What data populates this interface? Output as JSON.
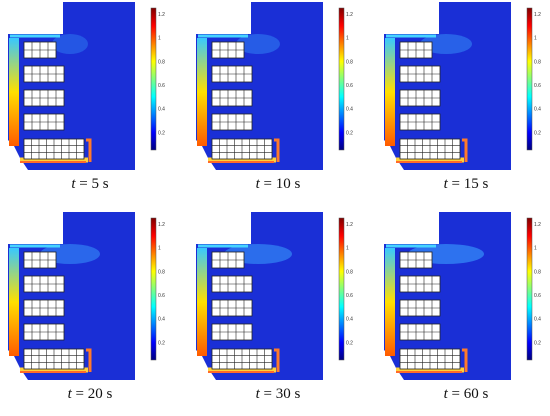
{
  "panels": [
    {
      "t_symbol": "t",
      "eq": " = ",
      "value": "5 s"
    },
    {
      "t_symbol": "t",
      "eq": " = ",
      "value": "10 s"
    },
    {
      "t_symbol": "t",
      "eq": " = ",
      "value": "15 s"
    },
    {
      "t_symbol": "t",
      "eq": " = ",
      "value": "20 s"
    },
    {
      "t_symbol": "t",
      "eq": " = ",
      "value": "30 s"
    },
    {
      "t_symbol": "t",
      "eq": " = ",
      "value": "60 s"
    }
  ],
  "colorbar": {
    "ticks": [
      "1.2",
      "1",
      "0.8",
      "0.6",
      "0.4",
      "0.2"
    ],
    "tick_values": [
      1.2,
      1.0,
      0.8,
      0.6,
      0.4,
      0.2
    ],
    "min": 0.05,
    "max": 1.25
  },
  "colors": {
    "field_background": "#1a2fd6",
    "field_dark": "#1020b8",
    "jet_low": "#00007f",
    "jet_high": "#7f0000"
  }
}
